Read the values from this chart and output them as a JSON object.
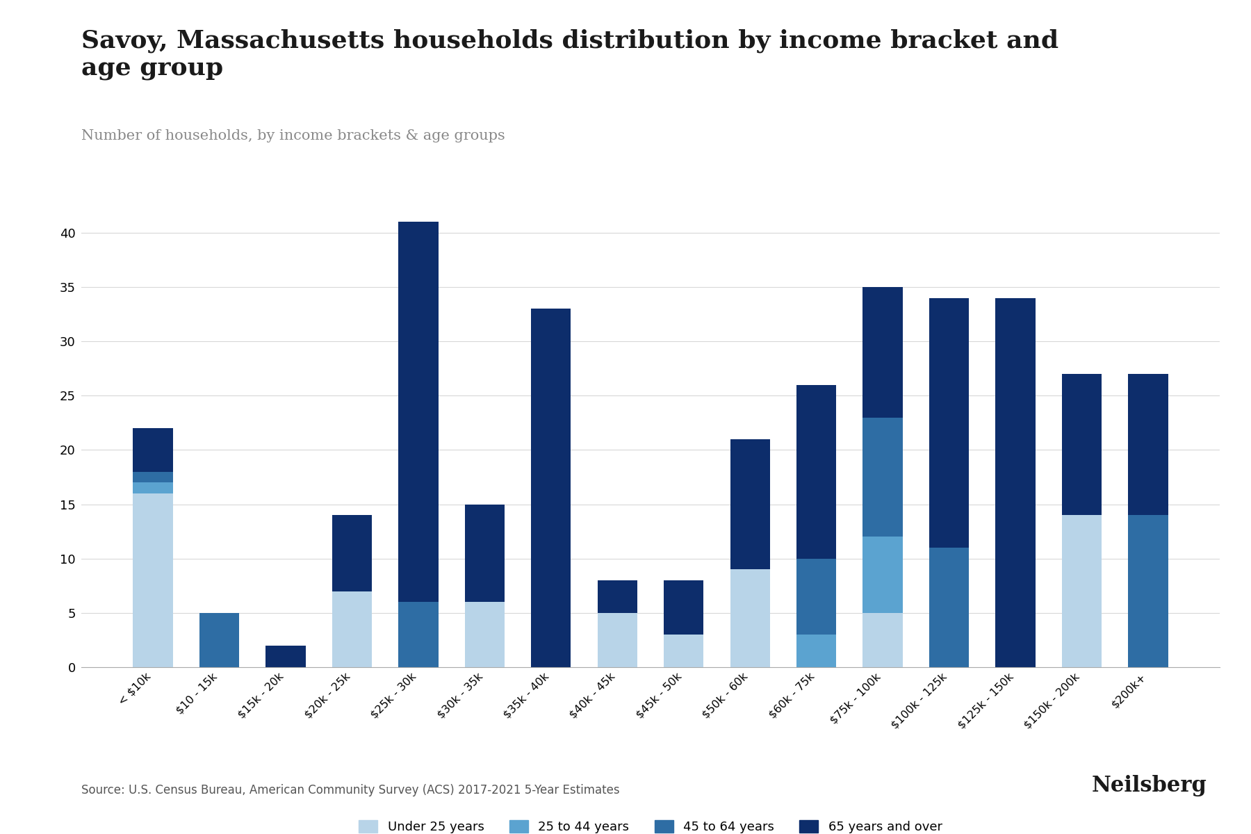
{
  "title": "Savoy, Massachusetts households distribution by income bracket and\nage group",
  "subtitle": "Number of households, by income brackets & age groups",
  "source": "Source: U.S. Census Bureau, American Community Survey (ACS) 2017-2021 5-Year Estimates",
  "categories": [
    "< $10k",
    "$10 - 15k",
    "$15k - 20k",
    "$20k - 25k",
    "$25k - 30k",
    "$30k - 35k",
    "$35k - 40k",
    "$40k - 45k",
    "$45k - 50k",
    "$50k - 60k",
    "$60k - 75k",
    "$75k - 100k",
    "$100k - 125k",
    "$125k - 150k",
    "$150k - 200k",
    "$200k+"
  ],
  "series": {
    "Under 25 years": [
      16,
      0,
      0,
      7,
      0,
      6,
      0,
      5,
      3,
      9,
      0,
      5,
      0,
      0,
      14,
      0
    ],
    "25 to 44 years": [
      1,
      0,
      0,
      0,
      0,
      0,
      0,
      0,
      0,
      0,
      3,
      7,
      0,
      0,
      0,
      0
    ],
    "45 to 64 years": [
      1,
      5,
      0,
      0,
      6,
      0,
      0,
      0,
      0,
      0,
      7,
      11,
      11,
      0,
      0,
      14
    ],
    "65 years and over": [
      4,
      0,
      2,
      7,
      35,
      9,
      33,
      3,
      5,
      12,
      16,
      12,
      23,
      34,
      13,
      13
    ]
  },
  "colors": {
    "Under 25 years": "#b8d4e8",
    "25 to 44 years": "#5ba3d0",
    "45 to 64 years": "#2e6da4",
    "65 years and over": "#0d2d6b"
  },
  "legend_order": [
    "Under 25 years",
    "25 to 44 years",
    "45 to 64 years",
    "65 years and over"
  ],
  "background_color": "#ffffff",
  "ylim": [
    0,
    43
  ],
  "yticks": [
    0,
    5,
    10,
    15,
    20,
    25,
    30,
    35,
    40
  ],
  "title_fontsize": 26,
  "subtitle_fontsize": 15,
  "source_fontsize": 12,
  "neilsberg_fontsize": 22
}
